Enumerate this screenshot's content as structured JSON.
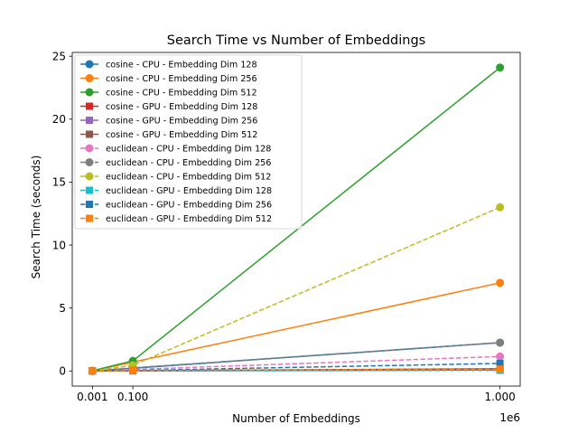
{
  "chart_data": {
    "type": "line",
    "title": "Search Time vs Number of Embeddings",
    "xlabel": "Number of Embeddings",
    "ylabel": "Search Time (seconds)",
    "x_offset_label": "1e6",
    "xlim": [
      -0.0485,
      1.0495
    ],
    "ylim": [
      -1.2,
      25.3
    ],
    "xticks": [
      {
        "value": 0.001,
        "label": "0.001"
      },
      {
        "value": 0.1,
        "label": "0.100"
      },
      {
        "value": 1.0,
        "label": "1.000"
      }
    ],
    "yticks": [
      {
        "value": 0,
        "label": "0"
      },
      {
        "value": 5,
        "label": "5"
      },
      {
        "value": 10,
        "label": "10"
      },
      {
        "value": 15,
        "label": "15"
      },
      {
        "value": 20,
        "label": "20"
      },
      {
        "value": 25,
        "label": "25"
      }
    ],
    "grid": false,
    "legend_position": "upper-left",
    "x": [
      0.001,
      0.1,
      1.0
    ],
    "series": [
      {
        "name": "cosine - CPU - Embedding Dim 128",
        "values": [
          0.002,
          0.22,
          2.25
        ],
        "color": "#1f77b4",
        "marker": "circle",
        "dash": "solid"
      },
      {
        "name": "cosine - CPU - Embedding Dim 256",
        "values": [
          0.007,
          0.7,
          7.0
        ],
        "color": "#ff7f0e",
        "marker": "circle",
        "dash": "solid"
      },
      {
        "name": "cosine - CPU - Embedding Dim 512",
        "values": [
          0.024,
          0.8,
          24.1
        ],
        "color": "#2ca02c",
        "marker": "circle",
        "dash": "solid"
      },
      {
        "name": "cosine - GPU - Embedding Dim 128",
        "values": [
          0.001,
          0.01,
          0.08
        ],
        "color": "#d62728",
        "marker": "square",
        "dash": "solid"
      },
      {
        "name": "cosine - GPU - Embedding Dim 256",
        "values": [
          0.001,
          0.015,
          0.12
        ],
        "color": "#9467bd",
        "marker": "square",
        "dash": "solid"
      },
      {
        "name": "cosine - GPU - Embedding Dim 512",
        "values": [
          0.001,
          0.02,
          0.18
        ],
        "color": "#8c564b",
        "marker": "square",
        "dash": "solid"
      },
      {
        "name": "euclidean - CPU - Embedding Dim 128",
        "values": [
          0.001,
          0.12,
          1.15
        ],
        "color": "#e377c2",
        "marker": "circle",
        "dash": "dashed"
      },
      {
        "name": "euclidean - CPU - Embedding Dim 256",
        "values": [
          0.002,
          0.25,
          2.25
        ],
        "color": "#7f7f7f",
        "marker": "circle",
        "dash": "dashed"
      },
      {
        "name": "euclidean - CPU - Embedding Dim 512",
        "values": [
          0.013,
          0.45,
          13.0
        ],
        "color": "#bcbd22",
        "marker": "circle",
        "dash": "dashed"
      },
      {
        "name": "euclidean - GPU - Embedding Dim 128",
        "values": [
          0.001,
          0.008,
          0.05
        ],
        "color": "#17becf",
        "marker": "square",
        "dash": "dashed"
      },
      {
        "name": "euclidean - GPU - Embedding Dim 256",
        "values": [
          0.001,
          0.04,
          0.6
        ],
        "color": "#1f77b4",
        "marker": "square",
        "dash": "dashed"
      },
      {
        "name": "euclidean - GPU - Embedding Dim 512",
        "values": [
          0.001,
          0.03,
          0.15
        ],
        "color": "#ff7f0e",
        "marker": "square",
        "dash": "dashed"
      }
    ]
  }
}
